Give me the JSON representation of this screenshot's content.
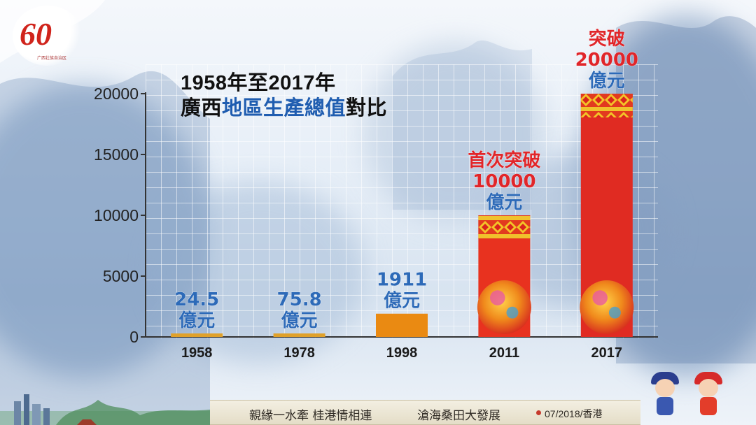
{
  "logo": {
    "mark": "60",
    "text": "广西壮族自治区"
  },
  "title": {
    "line1": "1958年至2017年",
    "line2_black": "廣西",
    "line2_blue": "地區生產總值",
    "line2_end": "對比"
  },
  "chart_data": {
    "type": "bar",
    "title": "1958年至2017年廣西地區生產總值對比",
    "categories": [
      "1958",
      "1978",
      "1998",
      "2011",
      "2017"
    ],
    "values": [
      24.5,
      75.8,
      1911,
      10000,
      20000
    ],
    "yticks": [
      0,
      5000,
      10000,
      15000,
      20000
    ],
    "ylim": [
      0,
      20000
    ],
    "grid": true,
    "bar_colors": [
      "#e0a12a",
      "#e0a12a",
      "#ea8a12",
      "#e8321f",
      "#e02b22"
    ],
    "unit": "億元",
    "value_labels": [
      "24.5",
      "75.8",
      "1911",
      "10000",
      "20000"
    ],
    "prefix_labels": [
      "",
      "",
      "",
      "首次突破",
      "突破"
    ],
    "label_colors": {
      "value": "#2d6ab8",
      "highlight": "#e0262a",
      "unit": "#2d6ab8"
    }
  },
  "footer": {
    "slogan_1": "親緣一水牽 桂港情相連",
    "slogan_2": "滄海桑田大發展",
    "date_place": "07/2018/香港"
  }
}
